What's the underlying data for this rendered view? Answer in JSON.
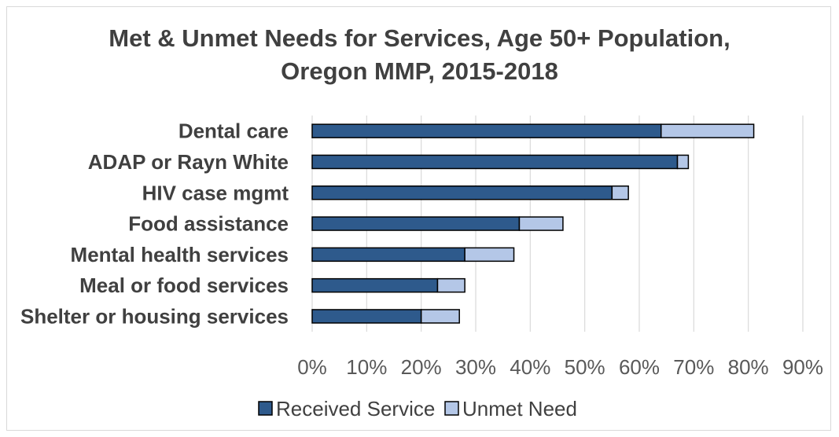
{
  "chart_data": {
    "type": "bar",
    "orientation": "horizontal",
    "stacked": true,
    "title_line1": "Met & Unmet Needs for Services, Age 50+ Population,",
    "title_line2": "Oregon MMP, 2015-2018",
    "categories": [
      "Dental care",
      "ADAP or Rayn White",
      "HIV case mgmt",
      "Food assistance",
      "Mental health services",
      "Meal or food services",
      "Shelter or housing services"
    ],
    "series": [
      {
        "name": "Received Service",
        "color": "#2e5a8c",
        "values": [
          64,
          67,
          55,
          38,
          28,
          23,
          20
        ]
      },
      {
        "name": "Unmet Need",
        "color": "#b4c7e7",
        "values": [
          17,
          2,
          3,
          8,
          9,
          5,
          7
        ]
      }
    ],
    "xlim": [
      0,
      90
    ],
    "x_ticks": [
      "0%",
      "10%",
      "20%",
      "30%",
      "40%",
      "50%",
      "60%",
      "70%",
      "80%",
      "90%"
    ],
    "gridlines": true,
    "legend_position": "bottom"
  }
}
